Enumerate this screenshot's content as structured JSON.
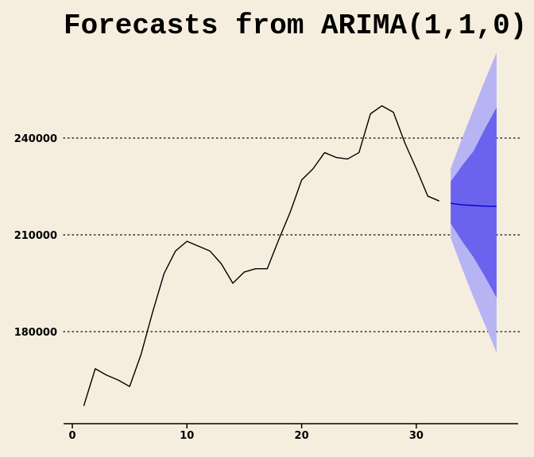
{
  "chart_data": {
    "type": "line",
    "title": "Forecasts from ARIMA(1,1,0)",
    "xlabel": "",
    "ylabel": "",
    "xlim": [
      0,
      38
    ],
    "ylim": [
      152000,
      270000
    ],
    "x_ticks": [
      0,
      10,
      20,
      30
    ],
    "y_ticks": [
      180000,
      210000,
      240000
    ],
    "grid": "horizontal dotted",
    "series": [
      {
        "role": "observed",
        "color": "#000000",
        "x": [
          1,
          2,
          3,
          4,
          5,
          6,
          7,
          8,
          9,
          10,
          11,
          12,
          13,
          14,
          15,
          16,
          17,
          18,
          19,
          20,
          21,
          22,
          23,
          24,
          25,
          26,
          27,
          28,
          29,
          30,
          31,
          32
        ],
        "values": [
          157000,
          168500,
          166500,
          165000,
          163000,
          173000,
          186000,
          198000,
          205000,
          208000,
          206500,
          205000,
          201000,
          195000,
          198500,
          199500,
          199500,
          208500,
          217000,
          227000,
          230500,
          235500,
          234000,
          233500,
          235500,
          247500,
          250000,
          248000,
          238500,
          230500,
          222000,
          220500
        ]
      },
      {
        "role": "forecast",
        "color": "#0000cc",
        "x": [
          33,
          34,
          35,
          36,
          37
        ],
        "values": [
          219800,
          219300,
          219100,
          218900,
          218800
        ],
        "interval_80": {
          "color": "#6b63ee",
          "lower": [
            213500,
            208000,
            203000,
            197000,
            190500
          ],
          "upper": [
            226500,
            231500,
            236000,
            243000,
            249500
          ]
        },
        "interval_95": {
          "color": "#b7b4f4",
          "lower": [
            209000,
            199500,
            190500,
            182000,
            173500
          ],
          "upper": [
            230500,
            240000,
            249000,
            258000,
            266500
          ]
        }
      }
    ]
  }
}
